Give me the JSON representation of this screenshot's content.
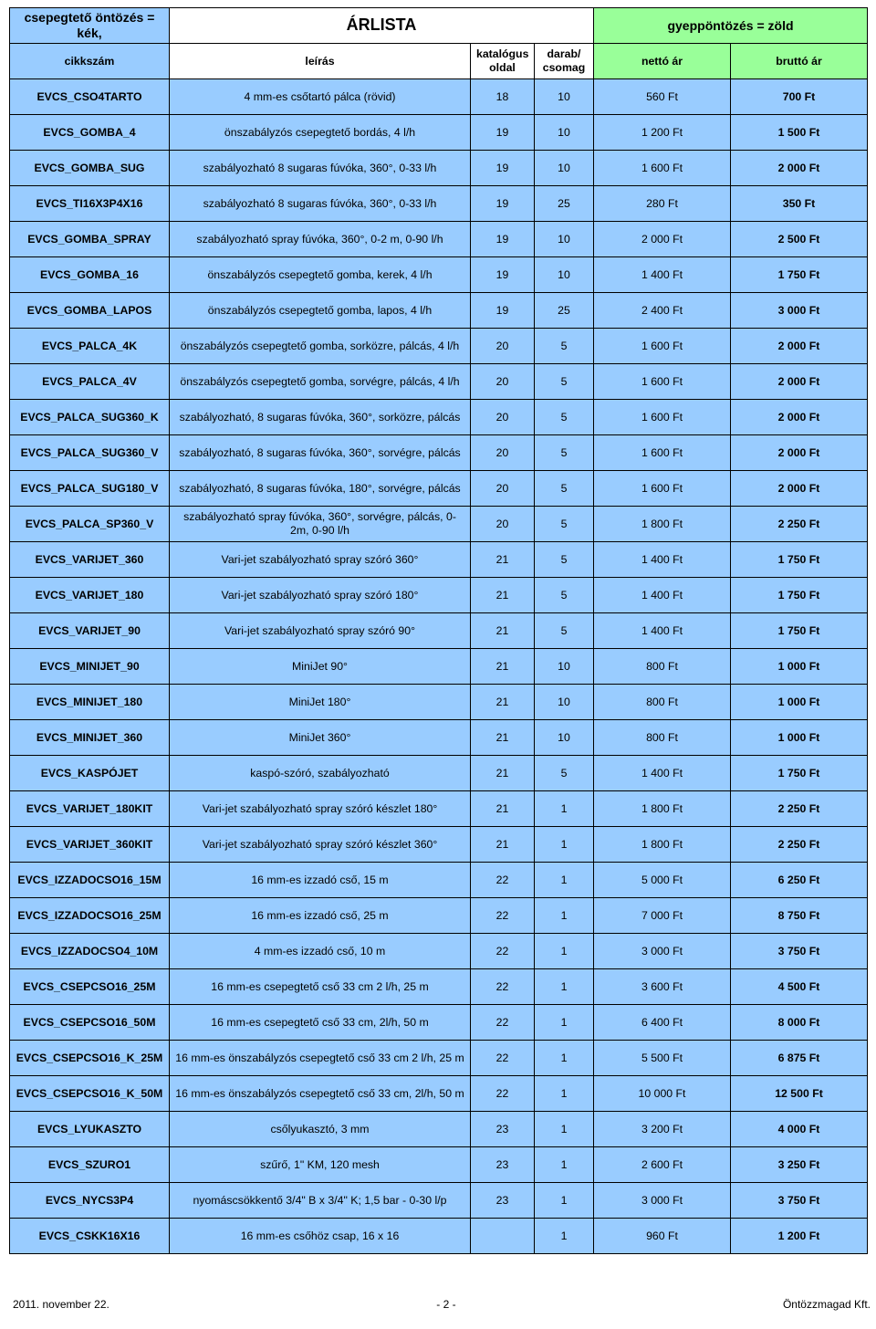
{
  "colors": {
    "blue": "#99ccff",
    "green": "#99ff99",
    "border": "#000000",
    "bg": "#ffffff"
  },
  "header": {
    "legend_left": "csepegtető öntözés = kék,",
    "title": "ÁRLISTA",
    "legend_right": "gyeppöntözés = zöld",
    "col_sku": "cikkszám",
    "col_desc": "leírás",
    "col_page": "katalógus oldal",
    "col_pack": "darab/ csomag",
    "col_net": "nettó ár",
    "col_gross": "bruttó ár"
  },
  "rows": [
    {
      "color": "blue",
      "sku": "EVCS_CSO4TARTO",
      "desc": "4 mm-es csőtartó pálca (rövid)",
      "page": "18",
      "pack": "10",
      "net": "560 Ft",
      "gross": "700 Ft"
    },
    {
      "color": "blue",
      "sku": "EVCS_GOMBA_4",
      "desc": "önszabályzós csepegtető bordás, 4 l/h",
      "page": "19",
      "pack": "10",
      "net": "1 200 Ft",
      "gross": "1 500 Ft"
    },
    {
      "color": "blue",
      "sku": "EVCS_GOMBA_SUG",
      "desc": "szabályozható 8 sugaras fúvóka, 360°, 0-33 l/h",
      "page": "19",
      "pack": "10",
      "net": "1 600 Ft",
      "gross": "2 000 Ft"
    },
    {
      "color": "blue",
      "sku": "EVCS_TI16X3P4X16",
      "desc": "szabályozható 8 sugaras fúvóka, 360°, 0-33 l/h",
      "page": "19",
      "pack": "25",
      "net": "280 Ft",
      "gross": "350 Ft"
    },
    {
      "color": "blue",
      "sku": "EVCS_GOMBA_SPRAY",
      "desc": "szabályozható spray fúvóka, 360°, 0-2 m, 0-90 l/h",
      "page": "19",
      "pack": "10",
      "net": "2 000 Ft",
      "gross": "2 500 Ft"
    },
    {
      "color": "blue",
      "sku": "EVCS_GOMBA_16",
      "desc": "önszabályzós csepegtető gomba, kerek, 4 l/h",
      "page": "19",
      "pack": "10",
      "net": "1 400 Ft",
      "gross": "1 750 Ft"
    },
    {
      "color": "blue",
      "sku": "EVCS_GOMBA_LAPOS",
      "desc": "önszabályzós csepegtető gomba, lapos, 4 l/h",
      "page": "19",
      "pack": "25",
      "net": "2 400 Ft",
      "gross": "3 000 Ft"
    },
    {
      "color": "blue",
      "sku": "EVCS_PALCA_4K",
      "desc": "önszabályzós csepegtető gomba, sorközre, pálcás, 4 l/h",
      "page": "20",
      "pack": "5",
      "net": "1 600 Ft",
      "gross": "2 000 Ft"
    },
    {
      "color": "blue",
      "sku": "EVCS_PALCA_4V",
      "desc": "önszabályzós csepegtető gomba, sorvégre, pálcás, 4 l/h",
      "page": "20",
      "pack": "5",
      "net": "1 600 Ft",
      "gross": "2 000 Ft"
    },
    {
      "color": "blue",
      "sku": "EVCS_PALCA_SUG360_K",
      "desc": "szabályozható, 8 sugaras fúvóka, 360°, sorközre, pálcás",
      "page": "20",
      "pack": "5",
      "net": "1 600 Ft",
      "gross": "2 000 Ft"
    },
    {
      "color": "blue",
      "sku": "EVCS_PALCA_SUG360_V",
      "desc": "szabályozható, 8 sugaras fúvóka, 360°, sorvégre, pálcás",
      "page": "20",
      "pack": "5",
      "net": "1 600 Ft",
      "gross": "2 000 Ft"
    },
    {
      "color": "blue",
      "sku": "EVCS_PALCA_SUG180_V",
      "desc": "szabályozható, 8 sugaras fúvóka, 180°, sorvégre, pálcás",
      "page": "20",
      "pack": "5",
      "net": "1 600 Ft",
      "gross": "2 000 Ft"
    },
    {
      "color": "blue",
      "sku": "EVCS_PALCA_SP360_V",
      "desc": "szabályozható spray fúvóka, 360°, sorvégre, pálcás, 0-2m, 0-90 l/h",
      "page": "20",
      "pack": "5",
      "net": "1 800 Ft",
      "gross": "2 250 Ft"
    },
    {
      "color": "blue",
      "sku": "EVCS_VARIJET_360",
      "desc": "Vari-jet szabályozható spray szóró 360°",
      "page": "21",
      "pack": "5",
      "net": "1 400 Ft",
      "gross": "1 750 Ft"
    },
    {
      "color": "blue",
      "sku": "EVCS_VARIJET_180",
      "desc": "Vari-jet szabályozható spray szóró 180°",
      "page": "21",
      "pack": "5",
      "net": "1 400 Ft",
      "gross": "1 750 Ft"
    },
    {
      "color": "blue",
      "sku": "EVCS_VARIJET_90",
      "desc": "Vari-jet szabályozható spray szóró 90°",
      "page": "21",
      "pack": "5",
      "net": "1 400 Ft",
      "gross": "1 750 Ft"
    },
    {
      "color": "blue",
      "sku": "EVCS_MINIJET_90",
      "desc": "MiniJet 90°",
      "page": "21",
      "pack": "10",
      "net": "800 Ft",
      "gross": "1 000 Ft"
    },
    {
      "color": "blue",
      "sku": "EVCS_MINIJET_180",
      "desc": "MiniJet 180°",
      "page": "21",
      "pack": "10",
      "net": "800 Ft",
      "gross": "1 000 Ft"
    },
    {
      "color": "blue",
      "sku": "EVCS_MINIJET_360",
      "desc": "MiniJet 360°",
      "page": "21",
      "pack": "10",
      "net": "800 Ft",
      "gross": "1 000 Ft"
    },
    {
      "color": "blue",
      "sku": "EVCS_KASPÓJET",
      "desc": "kaspó-szóró, szabályozható",
      "page": "21",
      "pack": "5",
      "net": "1 400 Ft",
      "gross": "1 750 Ft"
    },
    {
      "color": "blue",
      "sku": "EVCS_VARIJET_180KIT",
      "desc": "Vari-jet szabályozható spray szóró készlet 180°",
      "page": "21",
      "pack": "1",
      "net": "1 800 Ft",
      "gross": "2 250 Ft"
    },
    {
      "color": "blue",
      "sku": "EVCS_VARIJET_360KIT",
      "desc": "Vari-jet szabályozható spray szóró készlet 360°",
      "page": "21",
      "pack": "1",
      "net": "1 800 Ft",
      "gross": "2 250 Ft"
    },
    {
      "color": "blue",
      "sku": "EVCS_IZZADOCSO16_15M",
      "desc": "16 mm-es izzadó cső, 15 m",
      "page": "22",
      "pack": "1",
      "net": "5 000 Ft",
      "gross": "6 250 Ft"
    },
    {
      "color": "blue",
      "sku": "EVCS_IZZADOCSO16_25M",
      "desc": "16 mm-es izzadó cső, 25 m",
      "page": "22",
      "pack": "1",
      "net": "7 000 Ft",
      "gross": "8 750 Ft"
    },
    {
      "color": "blue",
      "sku": "EVCS_IZZADOCSO4_10M",
      "desc": "4 mm-es izzadó cső, 10 m",
      "page": "22",
      "pack": "1",
      "net": "3 000 Ft",
      "gross": "3 750 Ft"
    },
    {
      "color": "blue",
      "sku": "EVCS_CSEPCSO16_25M",
      "desc": "16 mm-es csepegtető cső 33 cm 2 l/h, 25 m",
      "page": "22",
      "pack": "1",
      "net": "3 600 Ft",
      "gross": "4 500 Ft"
    },
    {
      "color": "blue",
      "sku": "EVCS_CSEPCSO16_50M",
      "desc": "16 mm-es csepegtető cső 33 cm, 2l/h, 50 m",
      "page": "22",
      "pack": "1",
      "net": "6 400 Ft",
      "gross": "8 000 Ft"
    },
    {
      "color": "blue",
      "sku": "EVCS_CSEPCSO16_K_25M",
      "desc": "16 mm-es önszabályzós csepegtető cső 33 cm 2 l/h, 25 m",
      "page": "22",
      "pack": "1",
      "net": "5 500 Ft",
      "gross": "6 875 Ft"
    },
    {
      "color": "blue",
      "sku": "EVCS_CSEPCSO16_K_50M",
      "desc": "16 mm-es önszabályzós csepegtető cső 33 cm, 2l/h, 50 m",
      "page": "22",
      "pack": "1",
      "net": "10 000 Ft",
      "gross": "12 500 Ft"
    },
    {
      "color": "blue",
      "sku": "EVCS_LYUKASZTO",
      "desc": "csőlyukasztó, 3 mm",
      "page": "23",
      "pack": "1",
      "net": "3 200 Ft",
      "gross": "4 000 Ft"
    },
    {
      "color": "blue",
      "sku": "EVCS_SZURO1",
      "desc": "szűrő, 1\" KM, 120 mesh",
      "page": "23",
      "pack": "1",
      "net": "2 600 Ft",
      "gross": "3 250 Ft"
    },
    {
      "color": "blue",
      "sku": "EVCS_NYCS3P4",
      "desc": "nyomáscsökkentő 3/4\" B x 3/4\" K; 1,5 bar - 0-30 l/p",
      "page": "23",
      "pack": "1",
      "net": "3 000 Ft",
      "gross": "3 750 Ft"
    },
    {
      "color": "blue",
      "sku": "EVCS_CSKK16X16",
      "desc": "16 mm-es csőhöz csap, 16 x 16",
      "page": "",
      "pack": "1",
      "net": "960 Ft",
      "gross": "1 200 Ft"
    }
  ],
  "footer": {
    "left": "2011. november 22.",
    "center": "- 2 -",
    "right": "Öntözzmagad Kft."
  }
}
